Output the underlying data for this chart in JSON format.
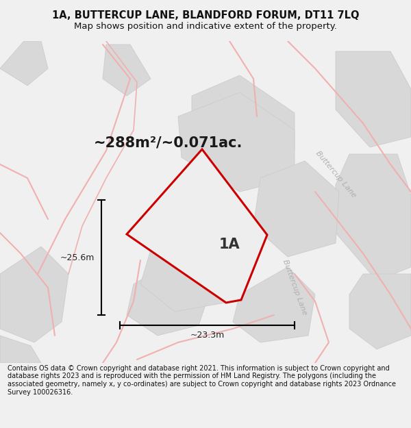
{
  "title_line1": "1A, BUTTERCUP LANE, BLANDFORD FORUM, DT11 7LQ",
  "title_line2": "Map shows position and indicative extent of the property.",
  "area_text": "~288m²/~0.071ac.",
  "label_1a": "1A",
  "dim_height": "~25.6m",
  "dim_width": "~23.3m",
  "road_label": "Buttercup Lane",
  "footer": "Contains OS data © Crown copyright and database right 2021. This information is subject to Crown copyright and database rights 2023 and is reproduced with the permission of HM Land Registry. The polygons (including the associated geometry, namely x, y co-ordinates) are subject to Crown copyright and database rights 2023 Ordnance Survey 100026316.",
  "bg_color": "#f0f0f0",
  "map_bg": "#ffffff",
  "building_fill": "#d8d8d8",
  "building_edge": "#cccccc",
  "road_line_color": "#f0b0b0",
  "property_stroke": "#cc0000",
  "property_fill": "#e8e8e8",
  "title_color": "#111111",
  "footer_color": "#111111",
  "road_label_color": "#b0b0b0",
  "dim_color": "#222222",
  "title_fontsize": 10.5,
  "subtitle_fontsize": 9.5,
  "area_fontsize": 15,
  "label_fontsize": 15,
  "dim_fontsize": 9,
  "road_fontsize": 8,
  "footer_fontsize": 7
}
